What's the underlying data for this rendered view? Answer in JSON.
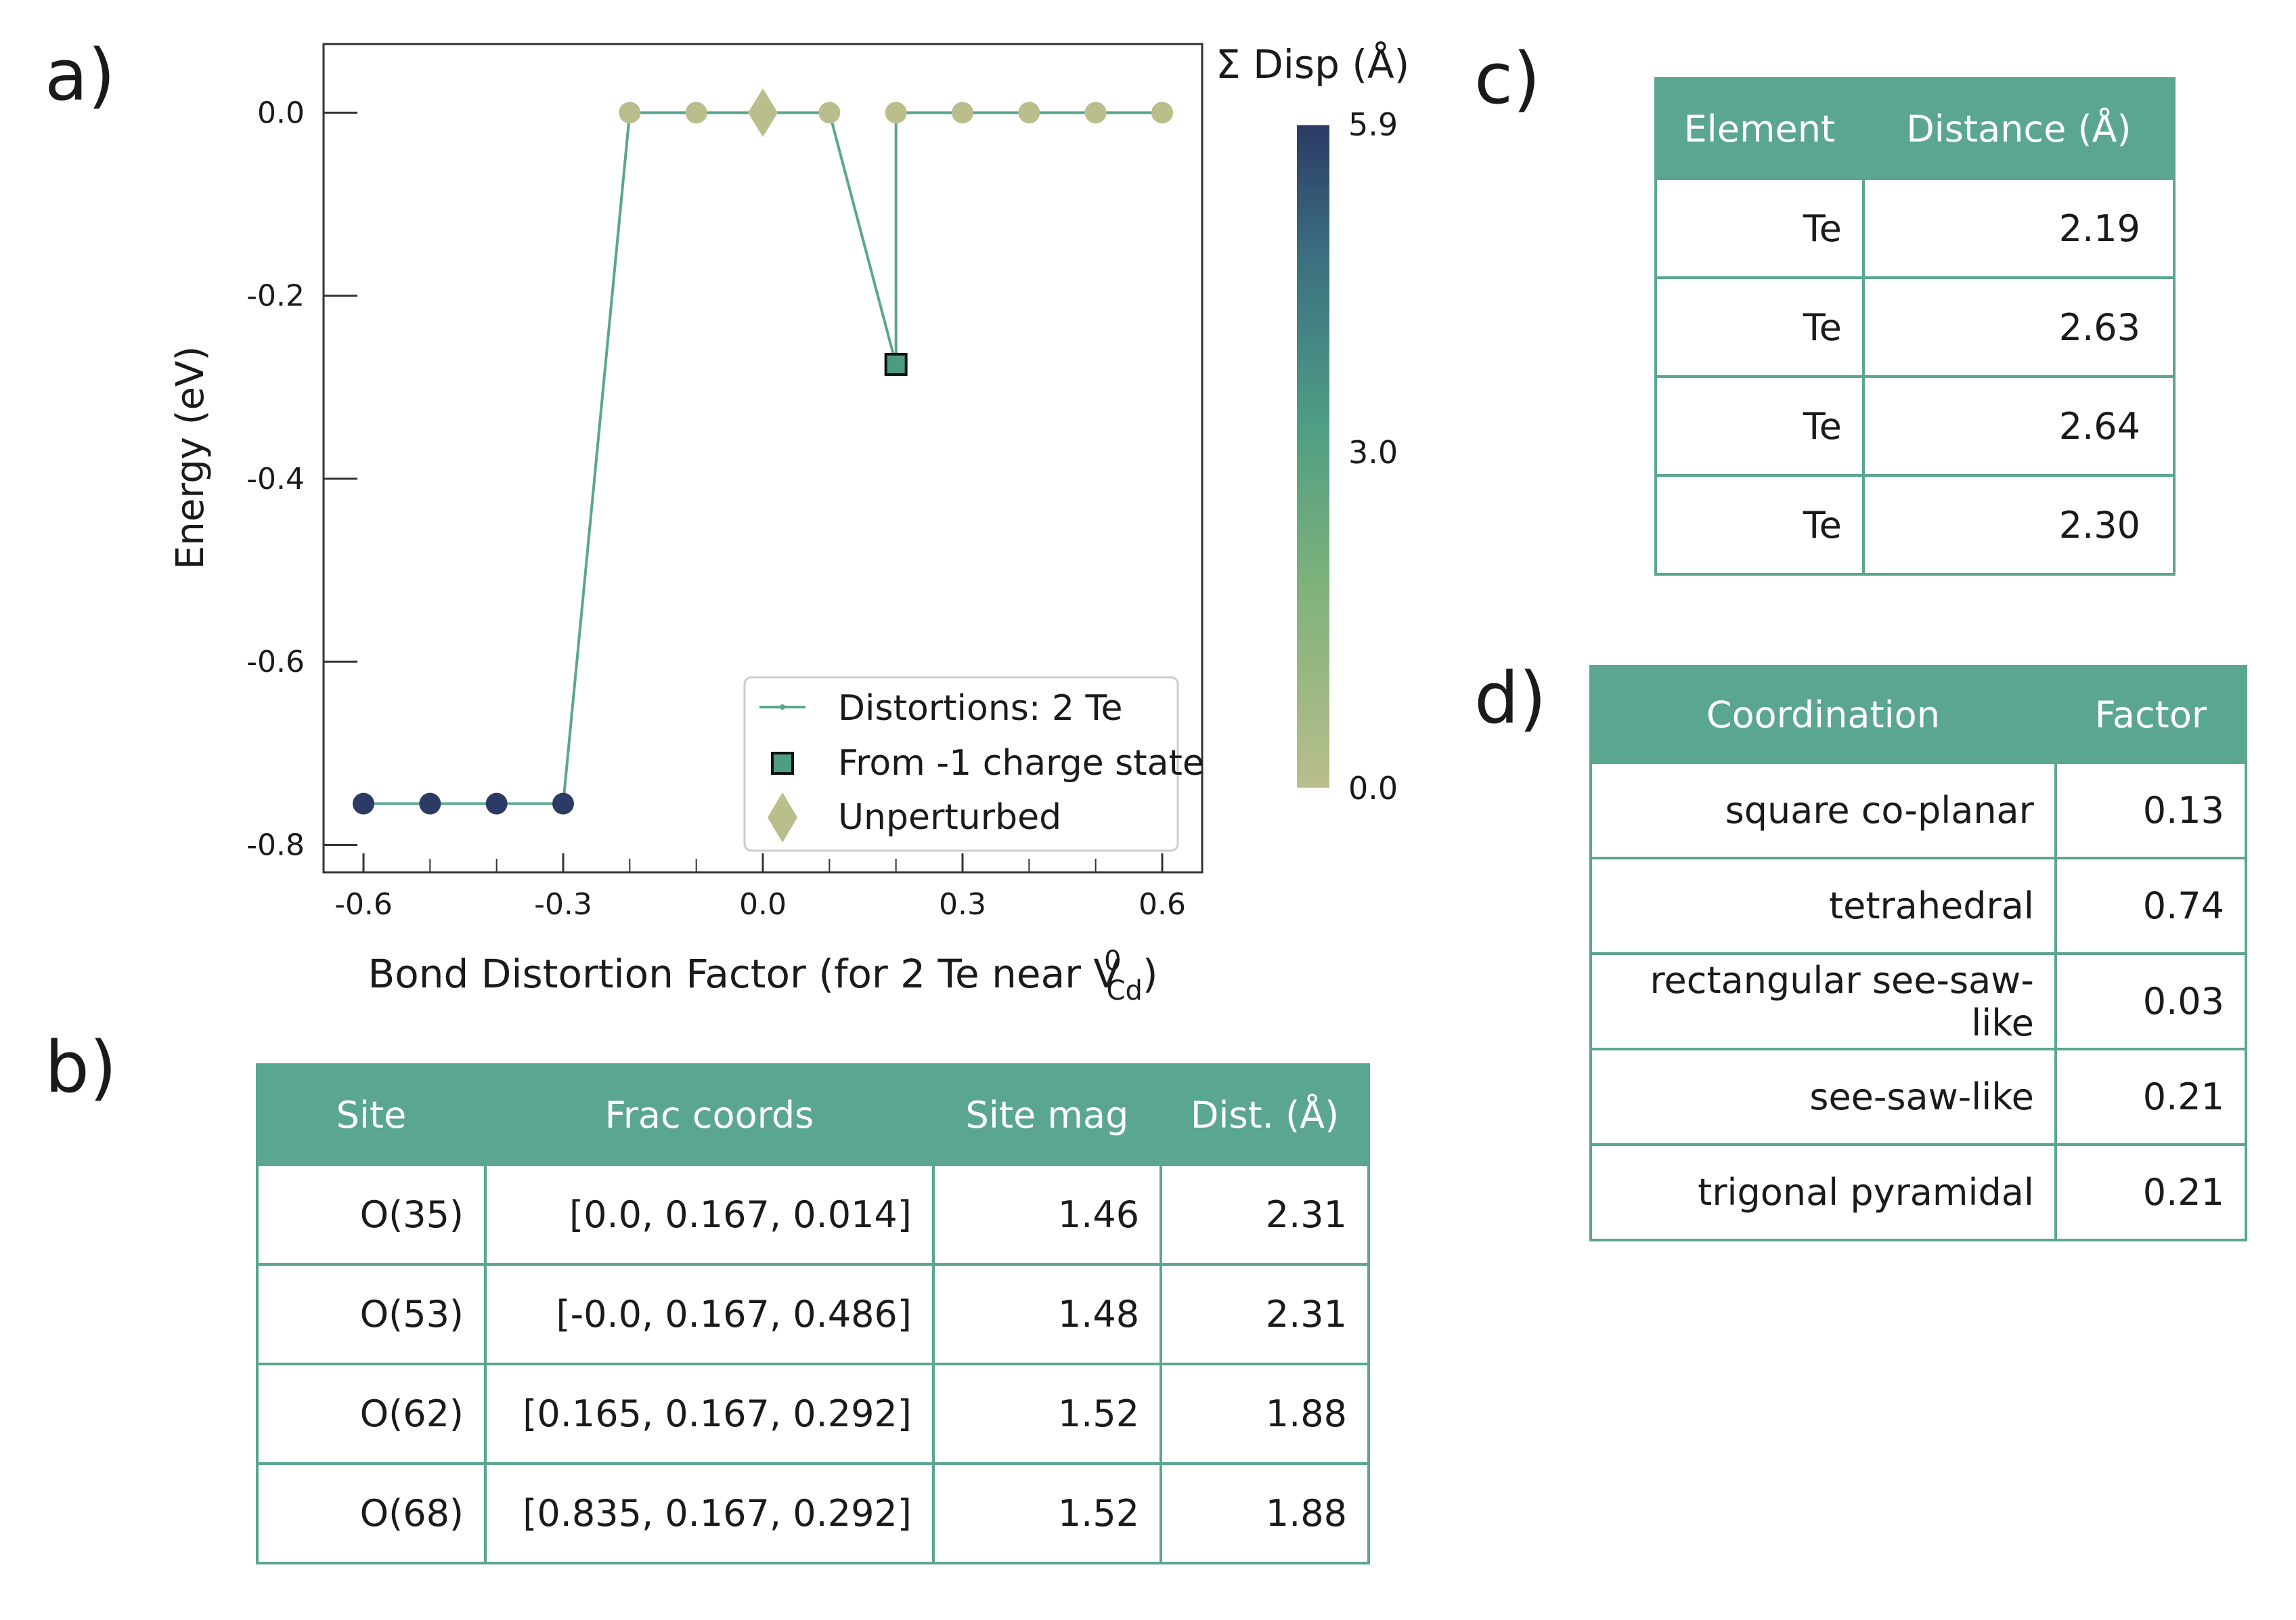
{
  "panels": {
    "a_label": "a)",
    "b_label": "b)",
    "c_label": "c)",
    "d_label": "d)"
  },
  "chart_data": {
    "type": "scatter",
    "xlabel": "Bond Distortion Factor (for 2 Te near V",
    "xlabel_sup": "0",
    "xlabel_sub": "Cd",
    "xlabel_end": ")",
    "ylabel": "Energy (eV)",
    "xlim": [
      -0.66,
      0.66
    ],
    "ylim": [
      -0.83,
      0.075
    ],
    "xticks": [
      -0.6,
      -0.3,
      0.0,
      0.3,
      0.6
    ],
    "xtick_labels": [
      "-0.6",
      "-0.3",
      "0.0",
      "0.3",
      "0.6"
    ],
    "xminor": [
      -0.5,
      -0.4,
      -0.2,
      -0.1,
      0.1,
      0.2,
      0.4,
      0.5
    ],
    "yticks": [
      0.0,
      -0.2,
      -0.4,
      -0.6,
      -0.8
    ],
    "ytick_labels": [
      "0.0",
      "-0.2",
      "-0.4",
      "-0.6",
      "-0.8"
    ],
    "series": [
      {
        "name": "Distortions: 2 Te",
        "x": [
          -0.6,
          -0.5,
          -0.4,
          -0.3,
          -0.2,
          -0.1,
          0.0,
          0.1,
          0.2,
          0.3,
          0.4,
          0.5,
          0.6
        ],
        "y": [
          -0.755,
          -0.755,
          -0.755,
          -0.755,
          0.0,
          0.0,
          0.0,
          0.0,
          0.0,
          0.0,
          0.0,
          0.0,
          0.0
        ],
        "disp": [
          5.9,
          5.9,
          5.9,
          5.9,
          0.0,
          0.0,
          0.0,
          0.0,
          0.0,
          0.0,
          0.0,
          0.0,
          0.0
        ],
        "line_path_x": [
          -0.6,
          -0.5,
          -0.4,
          -0.3,
          -0.2,
          -0.1,
          0.0,
          0.1,
          0.2,
          0.2,
          0.3,
          0.4,
          0.5,
          0.6
        ],
        "line_path_y": [
          -0.755,
          -0.755,
          -0.755,
          -0.755,
          0.0,
          0.0,
          0.0,
          0.0,
          -0.275,
          0.0,
          0.0,
          0.0,
          0.0,
          0.0
        ]
      },
      {
        "name": "From -1 charge state",
        "x": [
          0.2
        ],
        "y": [
          -0.275
        ],
        "disp": [
          3.0
        ]
      },
      {
        "name": "Unperturbed",
        "x": [
          0.0
        ],
        "y": [
          0.0
        ],
        "disp": [
          0.0
        ]
      }
    ],
    "colorbar": {
      "title": "Σ Disp (Å)",
      "max_label": "5.9",
      "mid_label": "3.0",
      "min_label": "0.0",
      "colors": [
        "#b9be8c",
        "#7fb27a",
        "#4f9d85",
        "#3b6f80",
        "#2c3b66"
      ]
    },
    "legend_placement": "lower-right",
    "colors": {
      "line": "#5aa690",
      "marker_high": "#2c3b66",
      "marker_low": "#b9be8c",
      "marker_mid": "#4f9d85"
    }
  },
  "table_b": {
    "headers": [
      "Site",
      "Frac coords",
      "Site mag",
      "Dist. (Å)"
    ],
    "rows": [
      [
        "O(35)",
        "[0.0, 0.167, 0.014]",
        "1.46",
        "2.31"
      ],
      [
        "O(53)",
        "[-0.0, 0.167, 0.486]",
        "1.48",
        "2.31"
      ],
      [
        "O(62)",
        "[0.165, 0.167, 0.292]",
        "1.52",
        "1.88"
      ],
      [
        "O(68)",
        "[0.835, 0.167, 0.292]",
        "1.52",
        "1.88"
      ]
    ]
  },
  "table_c": {
    "headers": [
      "Element",
      "Distance (Å)"
    ],
    "rows": [
      [
        "Te",
        "2.19"
      ],
      [
        "Te",
        "2.63"
      ],
      [
        "Te",
        "2.64"
      ],
      [
        "Te",
        "2.30"
      ]
    ]
  },
  "table_d": {
    "headers": [
      "Coordination",
      "Factor"
    ],
    "rows": [
      [
        "square co-planar",
        "0.13"
      ],
      [
        "tetrahedral",
        "0.74"
      ],
      [
        "rectangular see-saw-like",
        "0.03"
      ],
      [
        "see-saw-like",
        "0.21"
      ],
      [
        "trigonal pyramidal",
        "0.21"
      ]
    ]
  }
}
